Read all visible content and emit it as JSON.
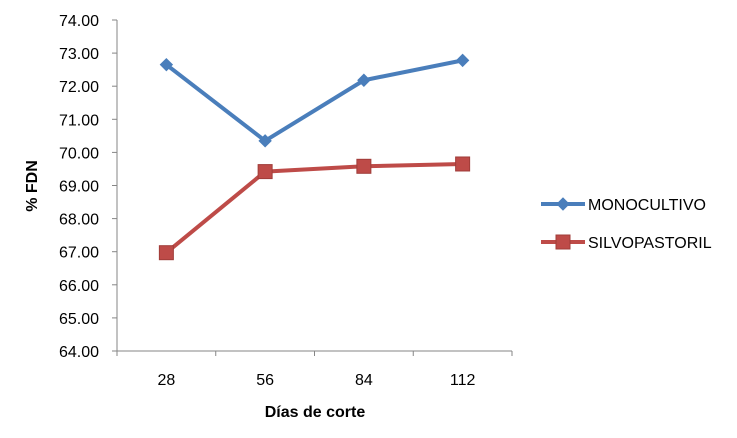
{
  "chart_data": {
    "type": "line",
    "title": "",
    "xlabel": "Días de corte",
    "ylabel": "% FDN",
    "categories": [
      "28",
      "56",
      "84",
      "112"
    ],
    "ylim": [
      64.0,
      74.0
    ],
    "ytick_step": 1.0,
    "yticks": [
      "64.00",
      "65.00",
      "66.00",
      "67.00",
      "68.00",
      "69.00",
      "70.00",
      "71.00",
      "72.00",
      "73.00",
      "74.00"
    ],
    "grid": false,
    "legend_position": "right",
    "series": [
      {
        "name": "MONOCULTIVO",
        "values": [
          72.65,
          70.35,
          72.18,
          72.78
        ],
        "color": "#4A7EBB",
        "marker": "diamond"
      },
      {
        "name": "SILVOPASTORIL",
        "values": [
          66.97,
          69.42,
          69.58,
          69.65
        ],
        "color": "#BE4B48",
        "marker": "square"
      }
    ]
  }
}
